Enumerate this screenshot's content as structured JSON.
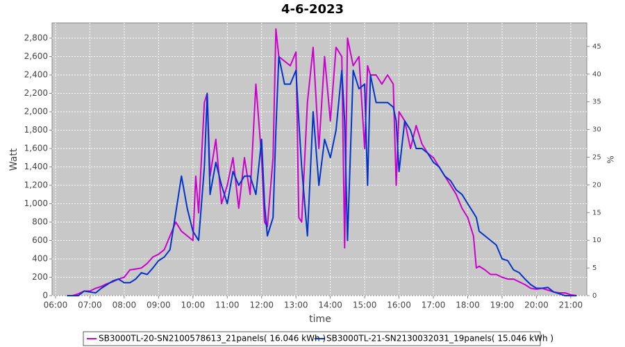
{
  "chart_data": {
    "type": "line",
    "title": "4-6-2023",
    "xlabel": "time",
    "ylabel": "Watt",
    "y2label": "%",
    "x": [
      "06:20",
      "06:30",
      "06:40",
      "06:50",
      "07:00",
      "07:10",
      "07:20",
      "07:30",
      "07:40",
      "07:50",
      "08:00",
      "08:10",
      "08:20",
      "08:30",
      "08:40",
      "08:50",
      "09:00",
      "09:10",
      "09:20",
      "09:30",
      "09:40",
      "09:50",
      "10:00",
      "10:05",
      "10:10",
      "10:20",
      "10:25",
      "10:30",
      "10:40",
      "10:50",
      "11:00",
      "11:10",
      "11:20",
      "11:30",
      "11:40",
      "11:50",
      "12:00",
      "12:05",
      "12:10",
      "12:20",
      "12:25",
      "12:30",
      "12:40",
      "12:50",
      "13:00",
      "13:05",
      "13:10",
      "13:20",
      "13:30",
      "13:40",
      "13:50",
      "14:00",
      "14:10",
      "14:20",
      "14:25",
      "14:30",
      "14:40",
      "14:50",
      "15:00",
      "15:05",
      "15:10",
      "15:20",
      "15:30",
      "15:40",
      "15:50",
      "15:55",
      "16:00",
      "16:10",
      "16:20",
      "16:30",
      "16:40",
      "16:50",
      "17:00",
      "17:10",
      "17:20",
      "17:30",
      "17:40",
      "17:50",
      "18:00",
      "18:10",
      "18:15",
      "18:20",
      "18:30",
      "18:40",
      "18:50",
      "19:00",
      "19:10",
      "19:20",
      "19:30",
      "19:40",
      "19:50",
      "20:00",
      "20:10",
      "20:20",
      "20:30",
      "20:40",
      "20:50",
      "21:00",
      "21:10"
    ],
    "series": [
      {
        "name": "SB3000TL-20-SN2100578613_21panels( 16.046 kWh )",
        "color": "#cc00cc",
        "values": [
          0,
          0,
          20,
          50,
          50,
          80,
          100,
          130,
          150,
          180,
          200,
          280,
          290,
          300,
          350,
          420,
          450,
          500,
          650,
          800,
          700,
          650,
          600,
          1300,
          900,
          2100,
          2200,
          1300,
          1700,
          1000,
          1200,
          1500,
          950,
          1500,
          1100,
          2300,
          1500,
          800,
          750,
          1500,
          2900,
          2600,
          2550,
          2500,
          2650,
          850,
          800,
          2100,
          2700,
          1600,
          2600,
          1900,
          2700,
          2600,
          520,
          2800,
          2500,
          2600,
          1600,
          2500,
          2400,
          2400,
          2300,
          2400,
          2300,
          1200,
          2000,
          1900,
          1600,
          1850,
          1650,
          1550,
          1500,
          1400,
          1300,
          1200,
          1100,
          950,
          850,
          650,
          300,
          320,
          280,
          230,
          230,
          200,
          180,
          180,
          150,
          120,
          80,
          70,
          80,
          60,
          40,
          30,
          30,
          10,
          0
        ]
      },
      {
        "name": "SB3000TL-21-SN2130032031_19panels( 15.046 kWh )",
        "color": "#0033cc",
        "values": [
          0,
          0,
          0,
          50,
          40,
          30,
          80,
          120,
          160,
          180,
          140,
          140,
          180,
          250,
          230,
          300,
          380,
          420,
          500,
          900,
          1300,
          950,
          700,
          650,
          600,
          1400,
          2200,
          1100,
          1450,
          1200,
          1000,
          1350,
          1200,
          1300,
          1300,
          1100,
          1700,
          1000,
          650,
          850,
          1800,
          2600,
          2300,
          2300,
          2450,
          1900,
          1400,
          650,
          2000,
          1200,
          1700,
          1500,
          1800,
          2450,
          1900,
          600,
          2450,
          2250,
          2300,
          1200,
          2400,
          2100,
          2100,
          2100,
          2050,
          1900,
          1350,
          1900,
          1800,
          1600,
          1600,
          1550,
          1450,
          1400,
          1300,
          1250,
          1150,
          1100,
          1000,
          900,
          850,
          700,
          650,
          600,
          550,
          400,
          380,
          280,
          250,
          180,
          120,
          80,
          80,
          90,
          40,
          20,
          0,
          0,
          0
        ]
      }
    ],
    "xlim": [
      "05:54",
      "21:28"
    ],
    "xticks": [
      "06:00",
      "07:00",
      "08:00",
      "09:00",
      "10:00",
      "11:00",
      "12:00",
      "13:00",
      "14:00",
      "15:00",
      "16:00",
      "17:00",
      "18:00",
      "19:00",
      "20:00",
      "21:00"
    ],
    "ylim": [
      0,
      2966
    ],
    "yticks": [
      0,
      200,
      400,
      600,
      800,
      {
        "value": 1000,
        "label": "1,000"
      },
      {
        "value": 1200,
        "label": "1,200"
      },
      {
        "value": 1400,
        "label": "1,400"
      },
      {
        "value": 1600,
        "label": "1,600"
      },
      {
        "value": 1800,
        "label": "1,800"
      },
      {
        "value": 2000,
        "label": "2,000"
      },
      {
        "value": 2200,
        "label": "2,200"
      },
      {
        "value": 2400,
        "label": "2,400"
      },
      {
        "value": 2600,
        "label": "2,600"
      },
      {
        "value": 2800,
        "label": "2,800"
      }
    ],
    "y2lim": [
      0,
      49.25
    ],
    "y2ticks": [
      0,
      5,
      10,
      15,
      20,
      25,
      30,
      35,
      40,
      45
    ],
    "grid": true,
    "legend": "bottom"
  }
}
